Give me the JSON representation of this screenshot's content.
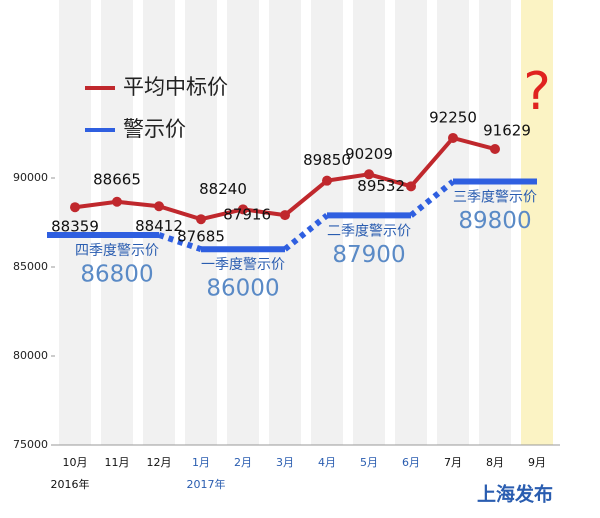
{
  "chart_data": {
    "type": "line",
    "categories": [
      "10月",
      "11月",
      "12月",
      "1月",
      "2月",
      "3月",
      "4月",
      "5月",
      "6月",
      "7月",
      "8月",
      "9月"
    ],
    "year_labels": [
      "2016年",
      "2017年"
    ],
    "series": [
      {
        "name": "平均中标价",
        "color": "#c0282d",
        "values": [
          88359,
          88665,
          88412,
          87685,
          88240,
          87916,
          89850,
          90209,
          89532,
          92250,
          91629,
          null
        ]
      },
      {
        "name": "警示价",
        "color": "#2f5fe0",
        "values": [
          86800,
          86800,
          86800,
          86000,
          86000,
          86000,
          87900,
          87900,
          87900,
          89800,
          89800,
          89800
        ]
      }
    ],
    "quarter_labels": [
      "四季度警示价",
      "一季度警示价",
      "二季度警示价",
      "三季度警示价"
    ],
    "annotation": "?",
    "logo": "上海发布",
    "ylim": [
      75000,
      100000
    ],
    "yticks": [
      75000,
      80000,
      85000,
      90000
    ]
  }
}
